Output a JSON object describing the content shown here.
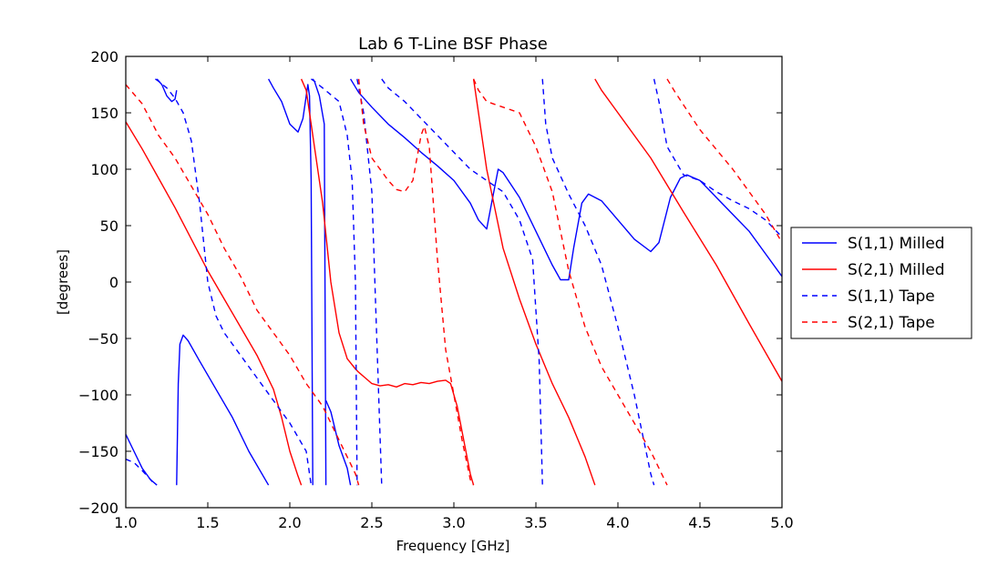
{
  "chart_data": {
    "type": "line",
    "title": "Lab 6 T-Line BSF Phase",
    "xlabel": "Frequency [GHz]",
    "ylabel": "[degrees]",
    "xlim": [
      1.0,
      5.0
    ],
    "ylim": [
      -200,
      200
    ],
    "xticks": [
      "1.0",
      "1.5",
      "2.0",
      "2.5",
      "3.0",
      "3.5",
      "4.0",
      "4.5",
      "5.0"
    ],
    "yticks": [
      "200",
      "150",
      "100",
      "50",
      "0",
      "−50",
      "−100",
      "−150",
      "−200"
    ],
    "grid": false,
    "legend_position": "outside right",
    "series": [
      {
        "name": "S(1,1) Milled",
        "color": "#0000ff",
        "style": "solid",
        "segments": [
          [
            [
              1.0,
              -135
            ],
            [
              1.05,
              -150
            ],
            [
              1.1,
              -165
            ],
            [
              1.15,
              -175
            ],
            [
              1.19,
              -180
            ]
          ],
          [
            [
              1.19,
              180
            ],
            [
              1.22,
              175
            ],
            [
              1.25,
              165
            ],
            [
              1.28,
              160
            ],
            [
              1.3,
              162
            ],
            [
              1.31,
              170
            ]
          ],
          [
            [
              1.31,
              -180
            ],
            [
              1.32,
              -90
            ],
            [
              1.33,
              -55
            ],
            [
              1.35,
              -47
            ],
            [
              1.38,
              -52
            ],
            [
              1.45,
              -70
            ],
            [
              1.55,
              -95
            ],
            [
              1.65,
              -120
            ],
            [
              1.75,
              -150
            ],
            [
              1.87,
              -180
            ]
          ],
          [
            [
              1.87,
              180
            ],
            [
              1.9,
              172
            ],
            [
              1.95,
              160
            ],
            [
              2.0,
              140
            ],
            [
              2.05,
              133
            ],
            [
              2.08,
              145
            ],
            [
              2.11,
              175
            ],
            [
              2.12,
              165
            ],
            [
              2.13,
              90
            ],
            [
              2.14,
              -180
            ]
          ],
          [
            [
              2.14,
              180
            ],
            [
              2.15,
              178
            ],
            [
              2.18,
              165
            ],
            [
              2.21,
              140
            ],
            [
              2.22,
              -180
            ]
          ],
          [
            [
              2.22,
              -105
            ],
            [
              2.25,
              -115
            ],
            [
              2.3,
              -145
            ],
            [
              2.35,
              -165
            ],
            [
              2.37,
              -180
            ]
          ],
          [
            [
              2.37,
              180
            ],
            [
              2.42,
              168
            ],
            [
              2.5,
              155
            ],
            [
              2.6,
              140
            ],
            [
              2.7,
              128
            ],
            [
              2.8,
              115
            ],
            [
              2.9,
              103
            ],
            [
              3.0,
              90
            ],
            [
              3.1,
              70
            ],
            [
              3.15,
              55
            ],
            [
              3.2,
              47
            ],
            [
              3.23,
              70
            ],
            [
              3.27,
              100
            ],
            [
              3.3,
              97
            ],
            [
              3.4,
              75
            ],
            [
              3.5,
              45
            ],
            [
              3.6,
              15
            ],
            [
              3.65,
              2
            ],
            [
              3.7,
              2
            ],
            [
              3.73,
              30
            ],
            [
              3.78,
              70
            ],
            [
              3.82,
              78
            ],
            [
              3.9,
              72
            ],
            [
              4.0,
              55
            ],
            [
              4.1,
              38
            ],
            [
              4.2,
              27
            ],
            [
              4.25,
              35
            ],
            [
              4.32,
              75
            ],
            [
              4.38,
              92
            ],
            [
              4.42,
              95
            ],
            [
              4.5,
              90
            ],
            [
              4.6,
              75
            ],
            [
              4.7,
              60
            ],
            [
              4.8,
              45
            ],
            [
              4.9,
              25
            ],
            [
              5.0,
              5
            ]
          ]
        ]
      },
      {
        "name": "S(2,1) Milled",
        "color": "#ff0000",
        "style": "solid",
        "segments": [
          [
            [
              1.0,
              142
            ],
            [
              1.1,
              118
            ],
            [
              1.2,
              92
            ],
            [
              1.3,
              66
            ],
            [
              1.4,
              38
            ],
            [
              1.5,
              10
            ],
            [
              1.6,
              -15
            ],
            [
              1.7,
              -40
            ],
            [
              1.8,
              -65
            ],
            [
              1.9,
              -95
            ],
            [
              1.95,
              -120
            ],
            [
              2.0,
              -150
            ],
            [
              2.05,
              -172
            ],
            [
              2.07,
              -180
            ]
          ],
          [
            [
              2.07,
              180
            ],
            [
              2.1,
              170
            ],
            [
              2.15,
              120
            ],
            [
              2.2,
              70
            ],
            [
              2.25,
              0
            ],
            [
              2.3,
              -45
            ],
            [
              2.35,
              -68
            ],
            [
              2.4,
              -77
            ],
            [
              2.42,
              -80
            ]
          ],
          [
            [
              2.42,
              -80
            ],
            [
              2.46,
              -85
            ],
            [
              2.5,
              -90
            ],
            [
              2.55,
              -92
            ],
            [
              2.6,
              -91
            ],
            [
              2.65,
              -93
            ],
            [
              2.7,
              -90
            ],
            [
              2.75,
              -91
            ],
            [
              2.8,
              -89
            ],
            [
              2.85,
              -90
            ],
            [
              2.9,
              -88
            ],
            [
              2.95,
              -87
            ],
            [
              2.98,
              -90
            ],
            [
              3.02,
              -110
            ],
            [
              3.06,
              -140
            ],
            [
              3.1,
              -170
            ],
            [
              3.12,
              -180
            ]
          ],
          [
            [
              3.12,
              180
            ],
            [
              3.14,
              160
            ],
            [
              3.2,
              100
            ],
            [
              3.3,
              30
            ],
            [
              3.4,
              -15
            ],
            [
              3.5,
              -55
            ],
            [
              3.6,
              -90
            ],
            [
              3.7,
              -120
            ],
            [
              3.8,
              -155
            ],
            [
              3.86,
              -180
            ]
          ],
          [
            [
              3.86,
              180
            ],
            [
              3.9,
              170
            ],
            [
              4.0,
              150
            ],
            [
              4.2,
              110
            ],
            [
              4.4,
              62
            ],
            [
              4.6,
              15
            ],
            [
              4.8,
              -37
            ],
            [
              5.0,
              -88
            ]
          ]
        ]
      },
      {
        "name": "S(1,1) Tape",
        "color": "#0000ff",
        "style": "dashed",
        "segments": [
          [
            [
              1.0,
              -157
            ],
            [
              1.05,
              -160
            ],
            [
              1.1,
              -167
            ],
            [
              1.15,
              -175
            ],
            [
              1.18,
              -180
            ]
          ],
          [
            [
              1.18,
              180
            ],
            [
              1.2,
              178
            ],
            [
              1.25,
              172
            ],
            [
              1.3,
              163
            ],
            [
              1.35,
              150
            ],
            [
              1.4,
              125
            ],
            [
              1.45,
              70
            ],
            [
              1.5,
              0
            ],
            [
              1.55,
              -30
            ],
            [
              1.6,
              -45
            ],
            [
              1.7,
              -65
            ],
            [
              1.8,
              -85
            ],
            [
              1.9,
              -105
            ],
            [
              2.0,
              -125
            ],
            [
              2.1,
              -150
            ],
            [
              2.13,
              -180
            ]
          ],
          [
            [
              2.13,
              180
            ],
            [
              2.15,
              178
            ],
            [
              2.2,
              172
            ],
            [
              2.3,
              160
            ],
            [
              2.35,
              130
            ],
            [
              2.38,
              90
            ],
            [
              2.4,
              0
            ],
            [
              2.41,
              -180
            ]
          ],
          [
            [
              2.41,
              180
            ],
            [
              2.45,
              150
            ],
            [
              2.5,
              80
            ],
            [
              2.53,
              -50
            ],
            [
              2.56,
              -180
            ]
          ],
          [
            [
              2.56,
              180
            ],
            [
              2.6,
              172
            ],
            [
              2.7,
              160
            ],
            [
              2.8,
              145
            ],
            [
              2.9,
              130
            ],
            [
              3.0,
              115
            ],
            [
              3.1,
              100
            ],
            [
              3.2,
              90
            ],
            [
              3.3,
              80
            ],
            [
              3.4,
              55
            ],
            [
              3.48,
              20
            ],
            [
              3.52,
              -70
            ],
            [
              3.54,
              -180
            ]
          ],
          [
            [
              3.54,
              180
            ],
            [
              3.56,
              140
            ],
            [
              3.6,
              110
            ],
            [
              3.7,
              78
            ],
            [
              3.8,
              50
            ],
            [
              3.9,
              15
            ],
            [
              4.0,
              -40
            ],
            [
              4.1,
              -100
            ],
            [
              4.2,
              -170
            ],
            [
              4.22,
              -180
            ]
          ],
          [
            [
              4.22,
              180
            ],
            [
              4.25,
              160
            ],
            [
              4.3,
              120
            ],
            [
              4.4,
              95
            ],
            [
              4.5,
              90
            ],
            [
              4.6,
              80
            ],
            [
              4.7,
              72
            ],
            [
              4.8,
              65
            ],
            [
              4.9,
              55
            ],
            [
              5.0,
              40
            ]
          ]
        ]
      },
      {
        "name": "S(2,1) Tape",
        "color": "#ff0000",
        "style": "dashed",
        "segments": [
          [
            [
              1.0,
              175
            ],
            [
              1.1,
              158
            ],
            [
              1.2,
              130
            ],
            [
              1.3,
              110
            ],
            [
              1.4,
              85
            ],
            [
              1.5,
              60
            ],
            [
              1.6,
              30
            ],
            [
              1.7,
              5
            ],
            [
              1.8,
              -25
            ],
            [
              1.9,
              -45
            ],
            [
              2.0,
              -65
            ],
            [
              2.1,
              -90
            ],
            [
              2.2,
              -110
            ],
            [
              2.3,
              -140
            ],
            [
              2.4,
              -170
            ],
            [
              2.42,
              -180
            ]
          ],
          [
            [
              2.42,
              180
            ],
            [
              2.45,
              140
            ],
            [
              2.5,
              110
            ],
            [
              2.6,
              90
            ],
            [
              2.65,
              82
            ],
            [
              2.7,
              80
            ],
            [
              2.75,
              90
            ],
            [
              2.8,
              130
            ],
            [
              2.82,
              138
            ],
            [
              2.85,
              120
            ],
            [
              2.9,
              20
            ],
            [
              2.95,
              -60
            ],
            [
              3.0,
              -100
            ],
            [
              3.05,
              -140
            ],
            [
              3.1,
              -175
            ],
            [
              3.12,
              -180
            ]
          ],
          [
            [
              3.12,
              180
            ],
            [
              3.15,
              170
            ],
            [
              3.2,
              160
            ],
            [
              3.3,
              155
            ],
            [
              3.4,
              150
            ],
            [
              3.5,
              120
            ],
            [
              3.6,
              80
            ],
            [
              3.7,
              10
            ],
            [
              3.8,
              -40
            ],
            [
              3.9,
              -75
            ],
            [
              4.0,
              -100
            ],
            [
              4.1,
              -125
            ],
            [
              4.2,
              -150
            ],
            [
              4.3,
              -180
            ]
          ],
          [
            [
              4.3,
              180
            ],
            [
              4.35,
              168
            ],
            [
              4.5,
              135
            ],
            [
              4.7,
              100
            ],
            [
              4.9,
              60
            ],
            [
              5.0,
              35
            ]
          ]
        ]
      }
    ]
  }
}
